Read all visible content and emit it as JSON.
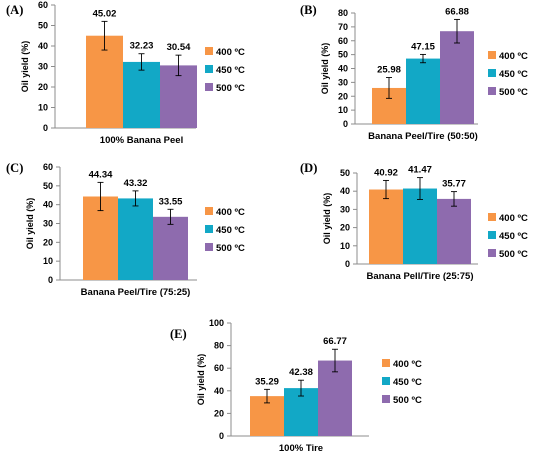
{
  "chart_data": [
    {
      "type": "bar",
      "panel": "(A)",
      "categories": [
        "100% Banana Peel"
      ],
      "xlabel": "100% Banana Peel",
      "ylabel": "Oil yield (%)",
      "ylim": [
        0,
        60
      ],
      "yticks": [
        0,
        10,
        20,
        30,
        40,
        50,
        60
      ],
      "series": [
        {
          "name": "400 ºC",
          "values": [
            45.02
          ],
          "errors": [
            7.0
          ],
          "label": "45.02"
        },
        {
          "name": "450 ºC",
          "values": [
            32.23
          ],
          "errors": [
            4.0
          ],
          "label": "32.23"
        },
        {
          "name": "500 ºC",
          "values": [
            30.54
          ],
          "errors": [
            5.0
          ],
          "label": "30.54"
        }
      ],
      "legend": "right"
    },
    {
      "type": "bar",
      "panel": "(B)",
      "categories": [
        "Banana Peel/Tire (50:50)"
      ],
      "xlabel": "Banana Peel/Tire (50:50)",
      "ylabel": "Oil yield (%)",
      "ylim": [
        0,
        80
      ],
      "yticks": [
        0,
        10,
        20,
        30,
        40,
        50,
        60,
        70,
        80
      ],
      "series": [
        {
          "name": "400 ºC",
          "values": [
            25.98
          ],
          "errors": [
            7.5
          ],
          "label": "25.98"
        },
        {
          "name": "450 ºC",
          "values": [
            47.15
          ],
          "errors": [
            3.0
          ],
          "label": "47.15"
        },
        {
          "name": "500 ºC",
          "values": [
            66.88
          ],
          "errors": [
            8.5
          ],
          "label": "66.88"
        }
      ],
      "legend": "right"
    },
    {
      "type": "bar",
      "panel": "(C)",
      "categories": [
        "Banana Peel/Tire (75:25)"
      ],
      "xlabel": "Banana Peel/Tire (75:25)",
      "ylabel": "Oil yield (%)",
      "ylim": [
        0,
        60
      ],
      "yticks": [
        0,
        10,
        20,
        30,
        40,
        50,
        60
      ],
      "series": [
        {
          "name": "400 ºC",
          "values": [
            44.34
          ],
          "errors": [
            7.5
          ],
          "label": "44.34"
        },
        {
          "name": "450 ºC",
          "values": [
            43.32
          ],
          "errors": [
            4.0
          ],
          "label": "43.32"
        },
        {
          "name": "500 ºC",
          "values": [
            33.55
          ],
          "errors": [
            4.0
          ],
          "label": "33.55"
        }
      ],
      "legend": "right"
    },
    {
      "type": "bar",
      "panel": "(D)",
      "categories": [
        "Banana Pell/Tire (25:75)"
      ],
      "xlabel": "Banana Pell/Tire (25:75)",
      "ylabel": "Oil yield (%)",
      "ylim": [
        0,
        50
      ],
      "yticks": [
        0,
        10,
        20,
        30,
        40,
        50
      ],
      "series": [
        {
          "name": "400 ºC",
          "values": [
            40.92
          ],
          "errors": [
            5.0
          ],
          "label": "40.92"
        },
        {
          "name": "450 ºC",
          "values": [
            41.47
          ],
          "errors": [
            6.0
          ],
          "label": "41.47"
        },
        {
          "name": "500 ºC",
          "values": [
            35.77
          ],
          "errors": [
            4.0
          ],
          "label": "35.77"
        }
      ],
      "legend": "right"
    },
    {
      "type": "bar",
      "panel": "(E)",
      "categories": [
        "100% Tire"
      ],
      "xlabel": "100% Tire",
      "ylabel": "Oil yield (%)",
      "ylim": [
        0,
        100
      ],
      "yticks": [
        0,
        20,
        40,
        60,
        80,
        100
      ],
      "series": [
        {
          "name": "400 ºC",
          "values": [
            35.29
          ],
          "errors": [
            6.0
          ],
          "label": "35.29"
        },
        {
          "name": "450 ºC",
          "values": [
            42.38
          ],
          "errors": [
            7.0
          ],
          "label": "42.38"
        },
        {
          "name": "500 ºC",
          "values": [
            66.77
          ],
          "errors": [
            10.0
          ],
          "label": "66.77"
        }
      ],
      "legend": "right"
    }
  ],
  "colors": {
    "400 ºC": "#F79646",
    "450 ºC": "#12A8C6",
    "500 ºC": "#8E6BAE",
    "axis": "#8C8C8C",
    "grid": "#D9D9D9"
  }
}
